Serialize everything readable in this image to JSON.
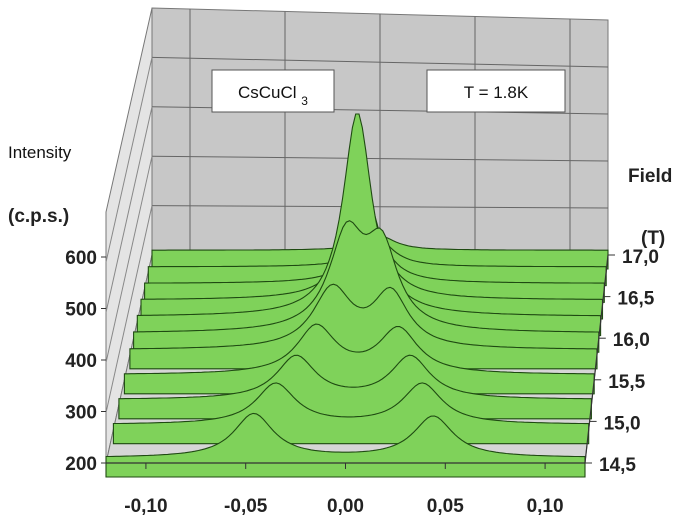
{
  "chart_data": {
    "type": "area",
    "subtype": "3d-waterfall-surface",
    "title": "",
    "compound_label": "CsCuCl3",
    "temperature_label": "T = 1.8K",
    "xlabel": "",
    "x_ticks": [
      "-0,10",
      "-0,05",
      "0,00",
      "0,05",
      "0,10"
    ],
    "x_tick_values": [
      -0.1,
      -0.05,
      0.0,
      0.05,
      0.1
    ],
    "xlim": [
      -0.12,
      0.12
    ],
    "ylabel_line1": "Intensity",
    "ylabel_line2": "(c.p.s.)",
    "y_ticks": [
      "600",
      "500",
      "400",
      "300",
      "200"
    ],
    "y_tick_values": [
      600,
      500,
      400,
      300,
      200
    ],
    "ylim": [
      200,
      600
    ],
    "zlabel_line1": "Field",
    "zlabel_line2": "(T)",
    "z_ticks": [
      "17,0",
      "16,5",
      "16,0",
      "15,5",
      "15,0",
      "14,5"
    ],
    "z_tick_values": [
      17.0,
      16.5,
      16.0,
      15.5,
      15.0,
      14.5
    ],
    "grid": true,
    "fill_color": "#7fd25a",
    "edge_color": "#1f4a12",
    "wall_color": "#c7c7c7",
    "floor_color": "#d6d6d6",
    "series": [
      {
        "field": 17.0,
        "baseline": 210,
        "peaks": [
          {
            "x": 0.0,
            "height": 30,
            "width": 0.01
          }
        ]
      },
      {
        "field": 16.8,
        "baseline": 210,
        "peaks": [
          {
            "x": 0.0,
            "height": 60,
            "width": 0.01
          }
        ]
      },
      {
        "field": 16.6,
        "baseline": 210,
        "peaks": [
          {
            "x": -0.002,
            "height": 120,
            "width": 0.01
          }
        ]
      },
      {
        "field": 16.4,
        "baseline": 210,
        "peaks": [
          {
            "x": -0.004,
            "height": 230,
            "width": 0.01
          }
        ]
      },
      {
        "field": 16.2,
        "baseline": 210,
        "peaks": [
          {
            "x": -0.006,
            "height": 420,
            "width": 0.009
          }
        ]
      },
      {
        "field": 16.0,
        "baseline": 210,
        "peaks": [
          {
            "x": -0.01,
            "height": 190,
            "width": 0.011
          },
          {
            "x": 0.008,
            "height": 160,
            "width": 0.01
          }
        ]
      },
      {
        "field": 15.8,
        "baseline": 210,
        "peaks": [
          {
            "x": -0.016,
            "height": 120,
            "width": 0.012
          },
          {
            "x": 0.014,
            "height": 110,
            "width": 0.011
          }
        ]
      },
      {
        "field": 15.5,
        "baseline": 210,
        "peaks": [
          {
            "x": -0.022,
            "height": 95,
            "width": 0.012
          },
          {
            "x": 0.02,
            "height": 90,
            "width": 0.012
          }
        ]
      },
      {
        "field": 15.2,
        "baseline": 210,
        "peaks": [
          {
            "x": -0.03,
            "height": 85,
            "width": 0.012
          },
          {
            "x": 0.028,
            "height": 85,
            "width": 0.012
          }
        ]
      },
      {
        "field": 14.9,
        "baseline": 210,
        "peaks": [
          {
            "x": -0.038,
            "height": 80,
            "width": 0.012
          },
          {
            "x": 0.036,
            "height": 80,
            "width": 0.012
          }
        ]
      },
      {
        "field": 14.5,
        "baseline": 210,
        "peaks": [
          {
            "x": -0.046,
            "height": 85,
            "width": 0.012
          },
          {
            "x": 0.044,
            "height": 80,
            "width": 0.012
          }
        ]
      }
    ]
  }
}
